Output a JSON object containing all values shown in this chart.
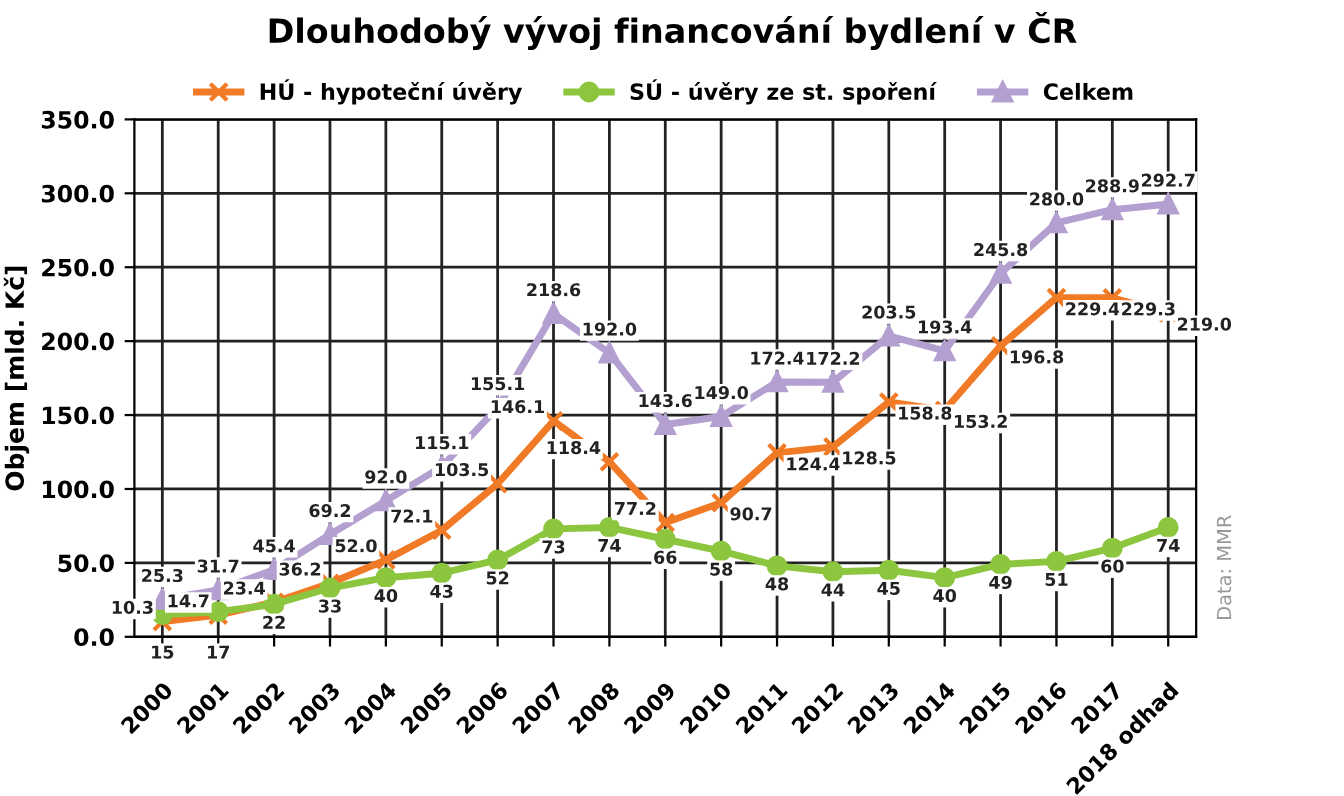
{
  "chart_data": {
    "type": "line",
    "title": "Dlouhodobý vývoj financování bydlení v ČR",
    "ylabel": "Objem [mld. Kč]",
    "categories": [
      "2000",
      "2001",
      "2002",
      "2003",
      "2004",
      "2005",
      "2006",
      "2007",
      "2008",
      "2009",
      "2010",
      "2011",
      "2012",
      "2013",
      "2014",
      "2015",
      "2016",
      "2017",
      "2018 odhad"
    ],
    "series": [
      {
        "name": "HÚ - hypoteční úvěry",
        "color": "#f07a26",
        "marker": "cross",
        "values": [
          10.3,
          14.7,
          23.4,
          36.2,
          52.0,
          72.1,
          103.5,
          146.1,
          118.4,
          77.2,
          90.7,
          124.4,
          128.5,
          158.8,
          153.2,
          196.8,
          229.4,
          229.3,
          219.0
        ],
        "value_labels": [
          "10.3",
          "14.7",
          "23.4",
          "36.2",
          "52.0",
          "72.1",
          "103.5",
          "146.1",
          "118.4",
          "77.2",
          "90.7",
          "124.4",
          "128.5",
          "158.8",
          "153.2",
          "196.8",
          "229.4",
          "229.3",
          "219.0"
        ]
      },
      {
        "name": "SÚ - úvěry ze st. spoření",
        "color": "#8cc63f",
        "marker": "circle",
        "values": [
          15,
          17,
          22,
          33,
          40,
          43,
          52,
          73,
          74,
          66,
          58,
          48,
          44,
          45,
          40,
          49,
          51,
          60,
          74
        ]
      },
      {
        "name": "Celkem",
        "color": "#b4a0d0",
        "marker": "triangle",
        "values": [
          25.3,
          31.7,
          45.4,
          69.2,
          92.0,
          115.1,
          155.1,
          218.6,
          192.0,
          143.6,
          149.0,
          172.4,
          172.2,
          203.5,
          193.4,
          245.8,
          280.0,
          288.9,
          292.7
        ],
        "value_labels": [
          "25.3",
          "31.7",
          "45.4",
          "69.2",
          "92.0",
          "115.1",
          "155.1",
          "218.6",
          "192.0",
          "143.6",
          "149.0",
          "172.4",
          "172.2",
          "203.5",
          "193.4",
          "245.8",
          "280.0",
          "288.9",
          "292.7"
        ]
      }
    ],
    "ylim": [
      0,
      350
    ],
    "yticks": [
      {
        "value": 0,
        "label": "0.0"
      },
      {
        "value": 50,
        "label": "50.0"
      },
      {
        "value": 100,
        "label": "100.0"
      },
      {
        "value": 150,
        "label": "150.0"
      },
      {
        "value": 200,
        "label": "200.0"
      },
      {
        "value": 250,
        "label": "250.0"
      },
      {
        "value": 300,
        "label": "300.0"
      },
      {
        "value": 350,
        "label": "350.0"
      }
    ],
    "grid": true,
    "legend": "top",
    "data_labels": true,
    "annotations": [
      "Data: MMR"
    ]
  }
}
